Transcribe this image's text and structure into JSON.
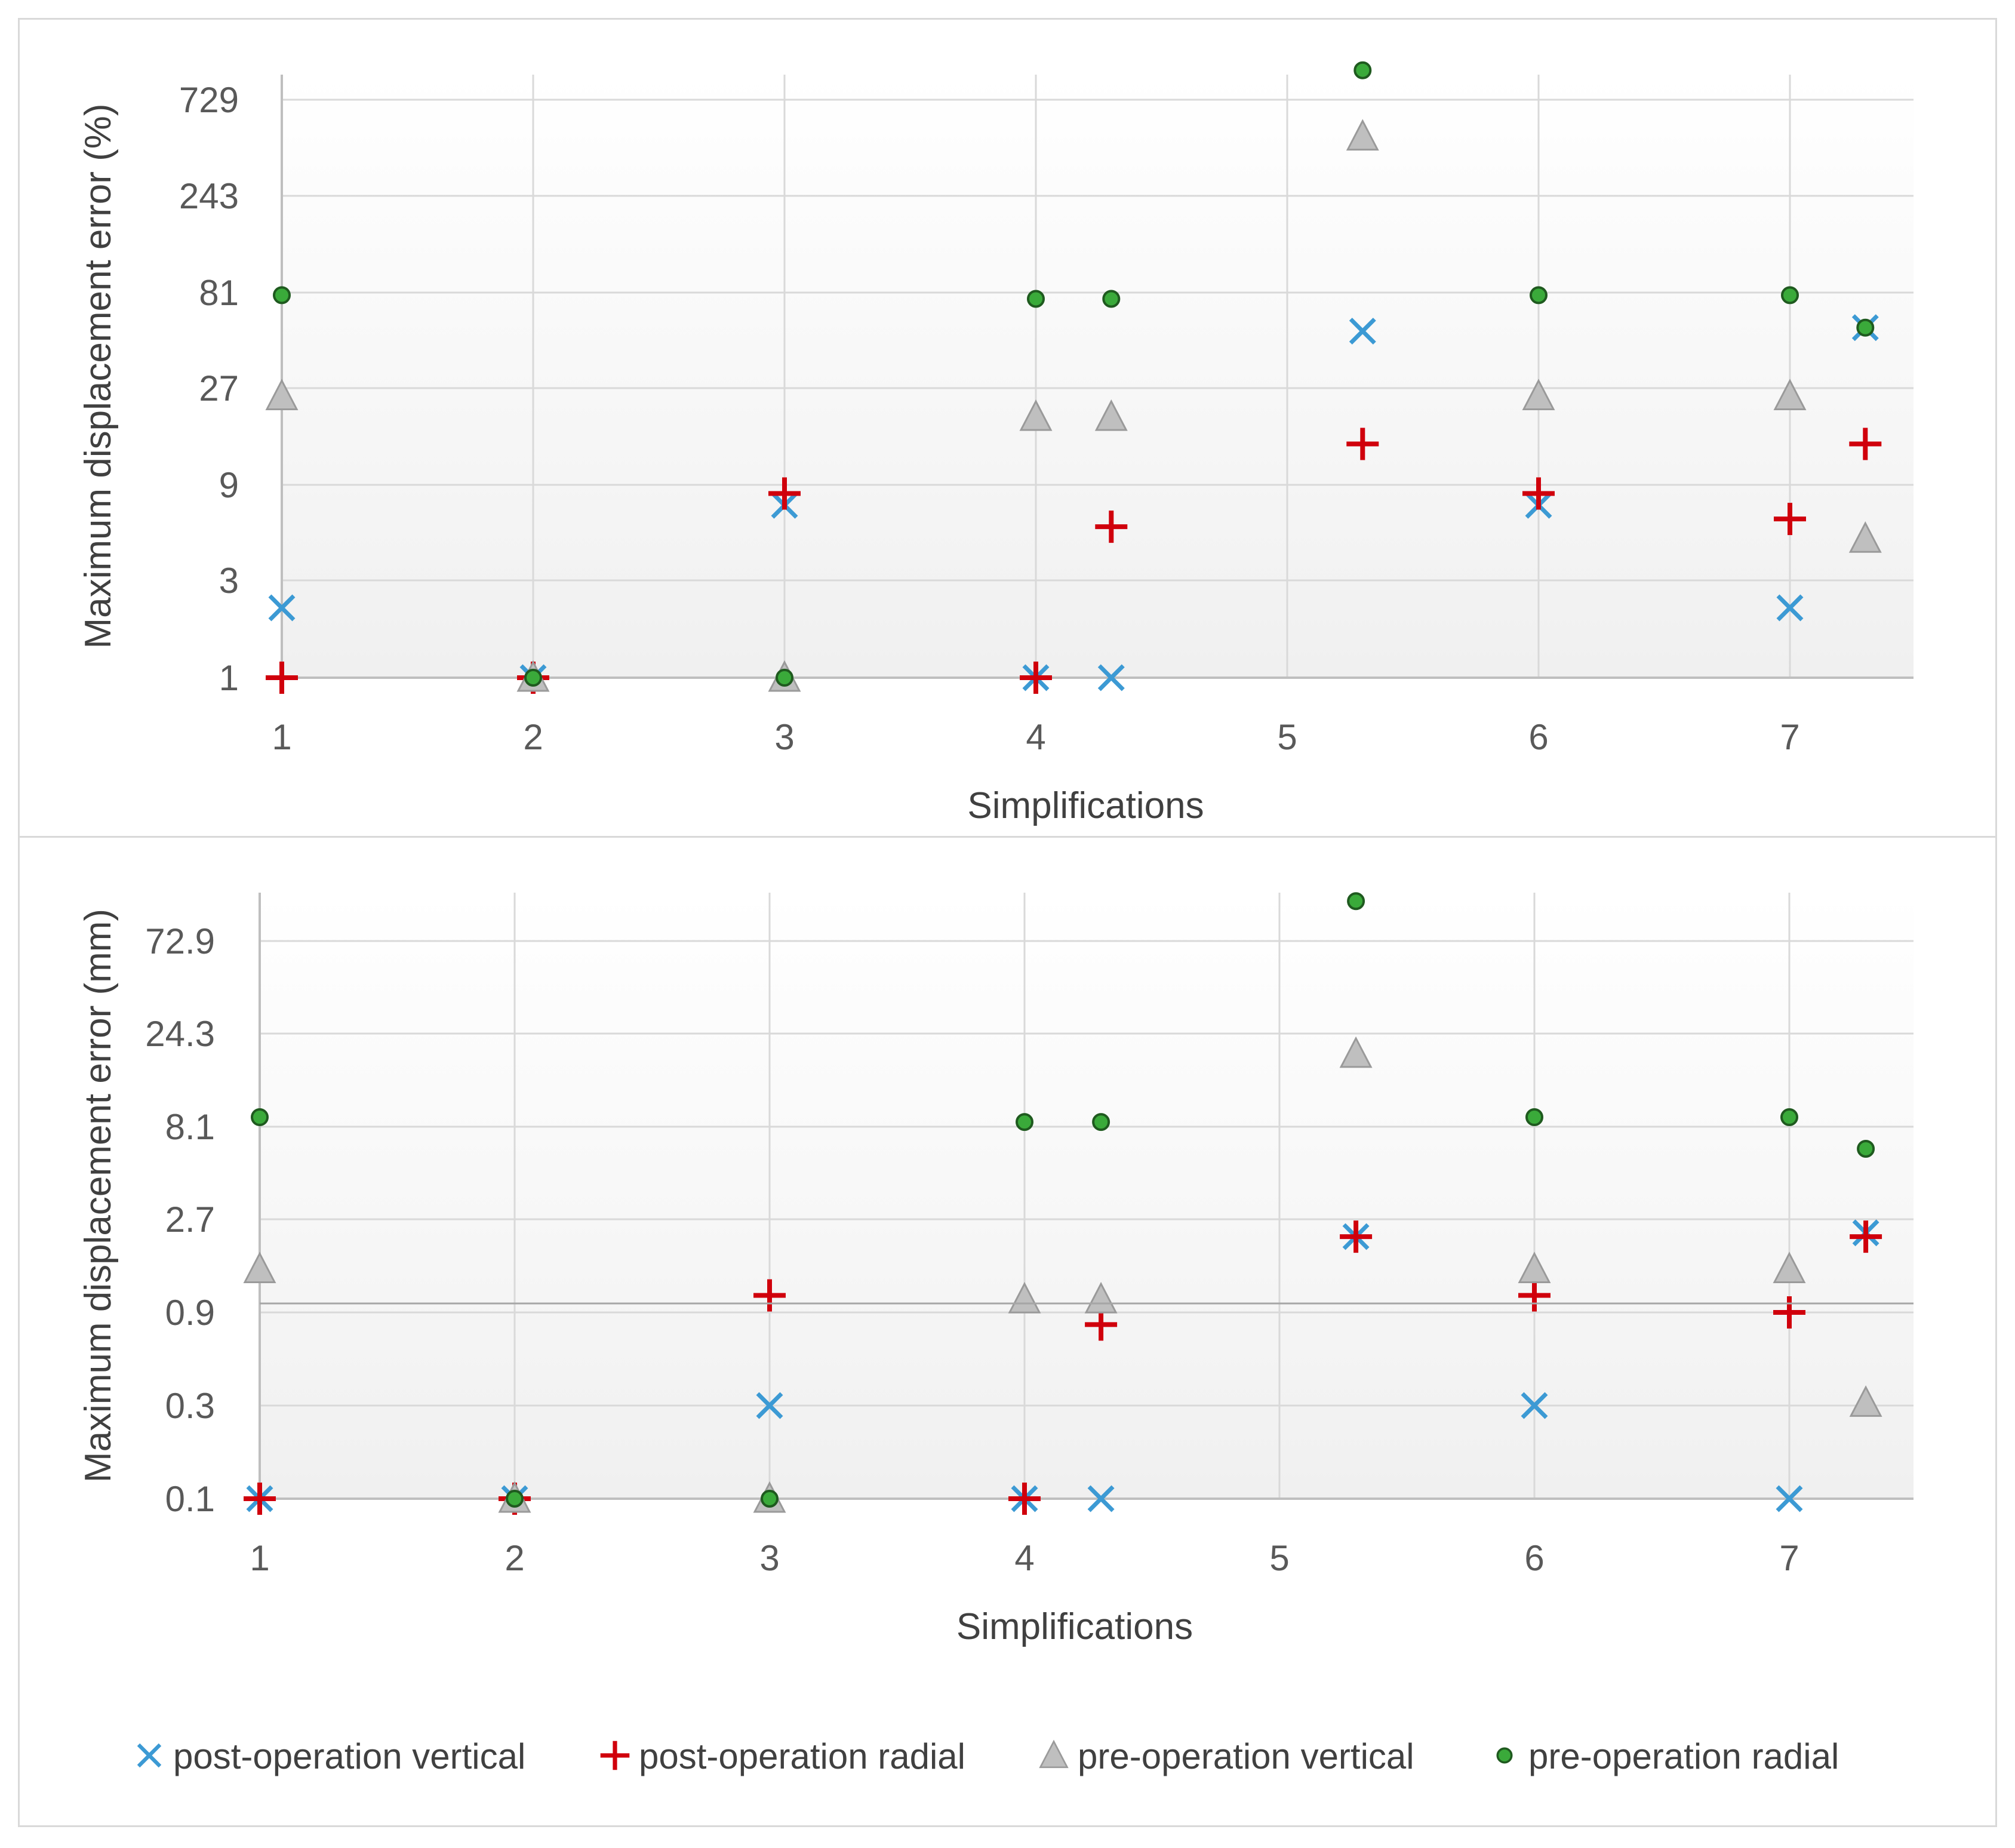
{
  "chart_data": [
    {
      "type": "scatter",
      "title": "",
      "xlabel": "Simplifications",
      "ylabel": "Maximum displacement error (%)",
      "x_ticks": [
        "1",
        "2",
        "3",
        "4",
        "5",
        "6",
        "7"
      ],
      "xlim": [
        1,
        7.3
      ],
      "y_scale": "log3",
      "y_ticks": [
        "1",
        "3",
        "9",
        "27",
        "81",
        "243",
        "729"
      ],
      "y_tick_values": [
        1,
        3,
        9,
        27,
        81,
        243,
        729
      ],
      "ylim": [
        1,
        1000
      ],
      "series": [
        {
          "name": "post-operation vertical",
          "marker": "x",
          "color": "#3c9ad4",
          "points": [
            [
              1,
              2.2
            ],
            [
              2,
              1
            ],
            [
              3,
              7
            ],
            [
              4,
              1
            ],
            [
              4.3,
              1
            ],
            [
              5.3,
              50
            ],
            [
              6,
              7
            ],
            [
              7,
              2.2
            ],
            [
              7.3,
              52
            ]
          ]
        },
        {
          "name": "post-operation radial",
          "marker": "plus",
          "color": "#d0000c",
          "points": [
            [
              1,
              1
            ],
            [
              2,
              1
            ],
            [
              3,
              8
            ],
            [
              4,
              1
            ],
            [
              4.3,
              5.5
            ],
            [
              5.3,
              14
            ],
            [
              6,
              8
            ],
            [
              7,
              6
            ],
            [
              7.3,
              14
            ]
          ]
        },
        {
          "name": "pre-operation vertical",
          "marker": "triangle",
          "color": "#bfbfbf",
          "points": [
            [
              1,
              24
            ],
            [
              2,
              1
            ],
            [
              3,
              1
            ],
            [
              4,
              19
            ],
            [
              4.3,
              19
            ],
            [
              5.3,
              450
            ],
            [
              6,
              24
            ],
            [
              7,
              24
            ],
            [
              7.3,
              4.8
            ]
          ]
        },
        {
          "name": "pre-operation radial",
          "marker": "circle",
          "color": "#3aaa3a",
          "points": [
            [
              1,
              75
            ],
            [
              2,
              1
            ],
            [
              3,
              1
            ],
            [
              4,
              72
            ],
            [
              4.3,
              72
            ],
            [
              5.3,
              950
            ],
            [
              6,
              75
            ],
            [
              7,
              75
            ],
            [
              7.3,
              52
            ]
          ]
        }
      ]
    },
    {
      "type": "scatter",
      "title": "",
      "xlabel": "Simplifications",
      "ylabel": "Maximum displacement error (mm)",
      "x_ticks": [
        "1",
        "2",
        "3",
        "4",
        "5",
        "6",
        "7"
      ],
      "xlim": [
        1,
        7.3
      ],
      "y_scale": "log3",
      "y_ticks": [
        "0.1",
        "0.3",
        "0.9",
        "2.7",
        "8.1",
        "24.3",
        "72.9"
      ],
      "y_tick_values": [
        0.1,
        0.3,
        0.9,
        2.7,
        8.1,
        24.3,
        72.9
      ],
      "ylim": [
        0.1,
        150
      ],
      "series": [
        {
          "name": "post-operation vertical",
          "marker": "x",
          "color": "#3c9ad4",
          "points": [
            [
              1,
              0.1
            ],
            [
              2,
              0.1
            ],
            [
              3,
              0.3
            ],
            [
              4,
              0.1
            ],
            [
              4.3,
              0.1
            ],
            [
              5.3,
              2.2
            ],
            [
              6,
              0.3
            ],
            [
              7,
              0.1
            ],
            [
              7.3,
              2.3
            ]
          ]
        },
        {
          "name": "post-operation radial",
          "marker": "plus",
          "color": "#d0000c",
          "points": [
            [
              1,
              0.1
            ],
            [
              2,
              0.1
            ],
            [
              3,
              1.1
            ],
            [
              4,
              0.1
            ],
            [
              4.3,
              0.78
            ],
            [
              5.3,
              2.2
            ],
            [
              6,
              1.1
            ],
            [
              7,
              0.9
            ],
            [
              7.3,
              2.2
            ]
          ]
        },
        {
          "name": "pre-operation vertical",
          "marker": "triangle",
          "color": "#bfbfbf",
          "points": [
            [
              1,
              1.5
            ],
            [
              2,
              0.1
            ],
            [
              3,
              0.1
            ],
            [
              4,
              1.05
            ],
            [
              4.3,
              1.05
            ],
            [
              5.3,
              19
            ],
            [
              6,
              1.5
            ],
            [
              7,
              1.5
            ],
            [
              7.3,
              0.31
            ]
          ]
        },
        {
          "name": "pre-operation radial",
          "marker": "circle",
          "color": "#3aaa3a",
          "points": [
            [
              1,
              9
            ],
            [
              2,
              0.1
            ],
            [
              3,
              0.1
            ],
            [
              4,
              8.5
            ],
            [
              4.3,
              8.5
            ],
            [
              5.3,
              115
            ],
            [
              6,
              9
            ],
            [
              7,
              9
            ],
            [
              7.3,
              6.2
            ]
          ]
        }
      ]
    }
  ],
  "legend": {
    "items": [
      {
        "label": "post-operation vertical",
        "marker": "x",
        "color": "#3c9ad4"
      },
      {
        "label": "post-operation radial",
        "marker": "plus",
        "color": "#d0000c"
      },
      {
        "label": "pre-operation vertical",
        "marker": "triangle",
        "color": "#bfbfbf"
      },
      {
        "label": "pre-operation radial",
        "marker": "circle",
        "color": "#3aaa3a"
      }
    ]
  }
}
